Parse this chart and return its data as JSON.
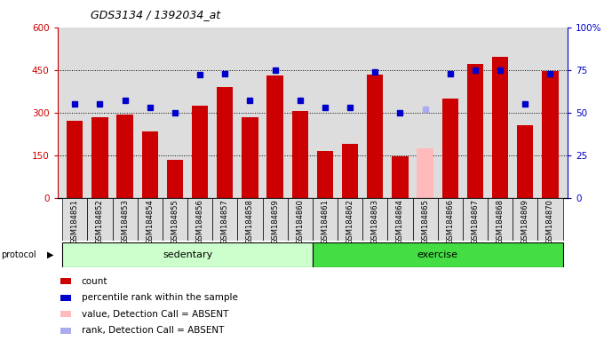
{
  "title": "GDS3134 / 1392034_at",
  "samples": [
    "GSM184851",
    "GSM184852",
    "GSM184853",
    "GSM184854",
    "GSM184855",
    "GSM184856",
    "GSM184857",
    "GSM184858",
    "GSM184859",
    "GSM184860",
    "GSM184861",
    "GSM184862",
    "GSM184863",
    "GSM184864",
    "GSM184865",
    "GSM184866",
    "GSM184867",
    "GSM184868",
    "GSM184869",
    "GSM184870"
  ],
  "count_values": [
    270,
    285,
    293,
    233,
    135,
    325,
    390,
    283,
    430,
    305,
    165,
    190,
    435,
    145,
    175,
    350,
    470,
    495,
    255,
    445
  ],
  "count_absent": [
    false,
    false,
    false,
    false,
    false,
    false,
    false,
    false,
    false,
    false,
    false,
    false,
    false,
    false,
    true,
    false,
    false,
    false,
    false,
    false
  ],
  "percentile_values": [
    55,
    55,
    57,
    53,
    50,
    72,
    73,
    57,
    75,
    57,
    53,
    53,
    74,
    50,
    52,
    73,
    75,
    75,
    55,
    73
  ],
  "percentile_absent": [
    false,
    false,
    false,
    false,
    false,
    false,
    false,
    false,
    false,
    false,
    false,
    false,
    false,
    false,
    true,
    false,
    false,
    false,
    false,
    false
  ],
  "protocol_groups": [
    {
      "label": "sedentary",
      "start": 0,
      "end": 9,
      "color": "#ccffcc"
    },
    {
      "label": "exercise",
      "start": 10,
      "end": 19,
      "color": "#44dd44"
    }
  ],
  "ylim_left": [
    0,
    600
  ],
  "ylim_right": [
    0,
    100
  ],
  "yticks_left": [
    0,
    150,
    300,
    450,
    600
  ],
  "yticks_right": [
    0,
    25,
    50,
    75,
    100
  ],
  "bar_color": "#cc0000",
  "bar_absent_color": "#ffbbbb",
  "dot_color": "#0000cc",
  "dot_absent_color": "#aaaaee",
  "bg_color": "#dddddd",
  "legend_items": [
    {
      "label": "count",
      "color": "#cc0000"
    },
    {
      "label": "percentile rank within the sample",
      "color": "#0000cc"
    },
    {
      "label": "value, Detection Call = ABSENT",
      "color": "#ffbbbb"
    },
    {
      "label": "rank, Detection Call = ABSENT",
      "color": "#aaaaee"
    }
  ]
}
